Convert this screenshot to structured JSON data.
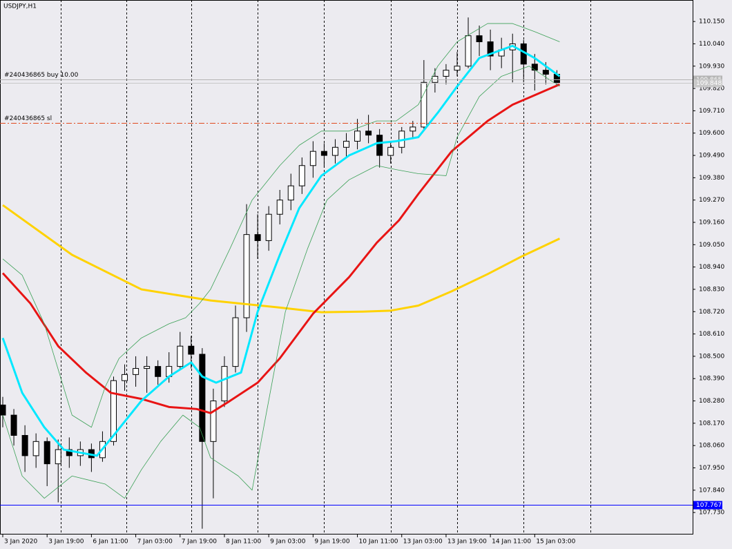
{
  "chart_data": {
    "type": "candlestick",
    "title": "USDJPY,H1",
    "xlim": [
      -1,
      249
    ],
    "ylim": [
      107.625,
      110.256
    ],
    "yticks": [
      {
        "value": 110.15,
        "label": "110.150"
      },
      {
        "value": 110.04,
        "label": "110.040"
      },
      {
        "value": 109.93,
        "label": "109.930"
      },
      {
        "value": 109.82,
        "label": "109.820"
      },
      {
        "value": 109.71,
        "label": "109.710"
      },
      {
        "value": 109.6,
        "label": "109.600"
      },
      {
        "value": 109.49,
        "label": "109.490"
      },
      {
        "value": 109.38,
        "label": "109.380"
      },
      {
        "value": 109.27,
        "label": "109.270"
      },
      {
        "value": 109.16,
        "label": "109.160"
      },
      {
        "value": 109.05,
        "label": "109.050"
      },
      {
        "value": 108.94,
        "label": "108.940"
      },
      {
        "value": 108.83,
        "label": "108.830"
      },
      {
        "value": 108.72,
        "label": "108.720"
      },
      {
        "value": 108.61,
        "label": "108.610"
      },
      {
        "value": 108.5,
        "label": "108.500"
      },
      {
        "value": 108.39,
        "label": "108.390"
      },
      {
        "value": 108.28,
        "label": "108.280"
      },
      {
        "value": 108.17,
        "label": "108.170"
      },
      {
        "value": 108.06,
        "label": "108.060"
      },
      {
        "value": 107.95,
        "label": "107.950"
      },
      {
        "value": 107.84,
        "label": "107.840"
      },
      {
        "value": 107.73,
        "label": "107.730"
      }
    ],
    "xticks": [
      {
        "value": 0,
        "label": "3 Jan 2020"
      },
      {
        "value": 16,
        "label": "3 Jan 19:00"
      },
      {
        "value": 32,
        "label": "6 Jan 11:00"
      },
      {
        "value": 48,
        "label": "7 Jan 03:00"
      },
      {
        "value": 64,
        "label": "7 Jan 19:00"
      },
      {
        "value": 80,
        "label": "8 Jan 11:00"
      },
      {
        "value": 96,
        "label": "9 Jan 03:00"
      },
      {
        "value": 112,
        "label": "9 Jan 19:00"
      },
      {
        "value": 128,
        "label": "10 Jan 11:00"
      },
      {
        "value": 144,
        "label": "13 Jan 03:00"
      },
      {
        "value": 160,
        "label": "13 Jan 19:00"
      },
      {
        "value": 176,
        "label": "14 Jan 11:00"
      },
      {
        "value": 192,
        "label": "15 Jan 03:00"
      }
    ],
    "period_separators": [
      21,
      44.5,
      68,
      92,
      116,
      140,
      164,
      188,
      212
    ],
    "x": [
      0,
      4,
      8,
      12,
      16,
      20,
      24,
      28,
      32,
      36,
      40,
      44,
      48,
      52,
      56,
      60,
      64,
      68,
      72,
      76,
      80,
      84,
      88,
      92,
      96,
      100,
      104,
      108,
      112,
      116,
      120,
      124,
      128,
      132,
      136,
      140,
      144,
      148,
      152,
      156,
      160,
      164,
      168,
      172,
      176,
      180,
      184,
      188,
      192,
      196,
      200
    ],
    "open": [
      108.26,
      108.21,
      108.11,
      108.01,
      108.08,
      107.97,
      108.04,
      108.01,
      108.04,
      108.0,
      108.08,
      108.38,
      108.41,
      108.44,
      108.45,
      108.4,
      108.45,
      108.55,
      108.51,
      108.08,
      108.28,
      108.45,
      108.69,
      109.1,
      109.07,
      109.2,
      109.27,
      109.34,
      109.44,
      109.51,
      109.49,
      109.53,
      109.56,
      109.61,
      109.59,
      109.49,
      109.53,
      109.61,
      109.63,
      109.85,
      109.88,
      109.91,
      109.93,
      110.08,
      110.05,
      109.98,
      110.01,
      110.04,
      109.94,
      109.91,
      109.89
    ],
    "high": [
      108.3,
      108.24,
      108.16,
      108.12,
      108.1,
      108.09,
      108.1,
      108.08,
      108.07,
      108.13,
      108.4,
      108.46,
      108.5,
      108.5,
      108.48,
      108.52,
      108.62,
      108.6,
      108.54,
      108.34,
      108.5,
      108.75,
      109.25,
      109.2,
      109.24,
      109.32,
      109.4,
      109.48,
      109.56,
      109.55,
      109.57,
      109.6,
      109.67,
      109.69,
      109.62,
      109.56,
      109.63,
      109.66,
      109.96,
      109.92,
      109.94,
      110.0,
      110.17,
      110.13,
      110.11,
      110.07,
      110.09,
      110.06,
      109.99,
      109.95,
      109.91
    ],
    "low": [
      108.15,
      108.06,
      107.93,
      107.95,
      107.86,
      107.78,
      107.95,
      107.96,
      107.93,
      107.98,
      108.06,
      108.33,
      108.35,
      108.32,
      108.36,
      108.37,
      108.43,
      108.44,
      107.65,
      107.8,
      108.25,
      108.42,
      108.62,
      108.98,
      109.02,
      109.15,
      109.22,
      109.3,
      109.38,
      109.43,
      109.45,
      109.48,
      109.52,
      109.55,
      109.43,
      109.45,
      109.5,
      109.58,
      109.62,
      109.8,
      109.84,
      109.88,
      109.92,
      109.98,
      109.91,
      109.92,
      109.85,
      109.85,
      109.81,
      109.84,
      109.83
    ],
    "close": [
      108.21,
      108.11,
      108.01,
      108.08,
      107.97,
      108.04,
      108.01,
      108.04,
      108.0,
      108.08,
      108.38,
      108.41,
      108.44,
      108.45,
      108.4,
      108.45,
      108.55,
      108.51,
      108.08,
      108.28,
      108.45,
      108.69,
      109.1,
      109.07,
      109.2,
      109.27,
      109.34,
      109.44,
      109.51,
      109.49,
      109.53,
      109.56,
      109.61,
      109.59,
      109.49,
      109.53,
      109.61,
      109.63,
      109.85,
      109.88,
      109.91,
      109.93,
      110.08,
      110.05,
      109.98,
      110.01,
      110.04,
      109.94,
      109.91,
      109.89,
      109.848
    ],
    "indicators": [
      {
        "color": "#ffd200",
        "width": 3,
        "x": [
          0,
          25,
          50,
          75,
          100,
          115,
          130,
          140,
          150,
          162,
          175,
          187,
          201
        ],
        "values": [
          109.245,
          109.0,
          108.83,
          108.775,
          108.74,
          108.717,
          108.72,
          108.725,
          108.75,
          108.82,
          108.905,
          108.99,
          109.08
        ]
      },
      {
        "color": "#e81414",
        "width": 3,
        "x": [
          0,
          10,
          20,
          30,
          39,
          50,
          60,
          70,
          75,
          82,
          92,
          100,
          112,
          125,
          135,
          143,
          150,
          162,
          175,
          184,
          201
        ],
        "values": [
          108.91,
          108.76,
          108.55,
          108.42,
          108.32,
          108.29,
          108.25,
          108.24,
          108.22,
          108.28,
          108.37,
          108.49,
          108.71,
          108.89,
          109.06,
          109.17,
          109.3,
          109.51,
          109.66,
          109.74,
          109.84
        ]
      },
      {
        "color": "#00e8ff",
        "width": 3,
        "x": [
          0,
          7,
          15,
          22,
          34,
          40,
          50,
          60,
          68,
          72,
          77,
          86,
          92,
          100,
          107,
          115,
          125,
          135,
          142,
          150,
          157,
          164,
          172,
          184,
          192,
          201
        ],
        "values": [
          108.59,
          108.32,
          108.15,
          108.04,
          108.01,
          108.11,
          108.28,
          108.4,
          108.47,
          108.4,
          108.37,
          108.42,
          108.72,
          109.0,
          109.23,
          109.39,
          109.49,
          109.55,
          109.56,
          109.58,
          109.7,
          109.83,
          109.97,
          110.03,
          109.97,
          109.88
        ]
      },
      {
        "color": "#3aa055",
        "width": 0.8,
        "x": [
          0,
          7,
          15,
          25,
          32,
          37,
          42,
          50,
          60,
          66,
          71,
          75,
          82,
          90,
          100,
          107,
          115,
          125,
          135,
          142,
          150,
          157,
          164,
          175,
          184,
          192,
          201
        ],
        "values": [
          108.98,
          108.9,
          108.66,
          108.21,
          108.15,
          108.35,
          108.49,
          108.59,
          108.66,
          108.69,
          108.76,
          108.83,
          109.03,
          109.27,
          109.44,
          109.54,
          109.61,
          109.61,
          109.66,
          109.66,
          109.74,
          109.93,
          110.05,
          110.14,
          110.14,
          110.1,
          110.05
        ]
      },
      {
        "color": "#3aa055",
        "width": 0.8,
        "x": [
          0,
          7,
          15,
          25,
          37,
          44,
          50,
          57,
          65,
          71,
          75,
          85,
          90,
          95,
          102,
          110,
          117,
          125,
          135,
          142,
          150,
          160,
          164,
          172,
          180,
          190,
          201
        ],
        "values": [
          108.21,
          107.91,
          107.8,
          107.91,
          107.87,
          107.8,
          107.94,
          108.08,
          108.21,
          108.15,
          108.0,
          107.91,
          107.84,
          108.21,
          108.72,
          109.03,
          109.27,
          109.37,
          109.44,
          109.42,
          109.4,
          109.39,
          109.58,
          109.78,
          109.88,
          109.93,
          109.83
        ]
      }
    ],
    "horizontal_lines": [
      {
        "text": "#240436865 buy 10.00",
        "value": 109.865,
        "label": "109.865",
        "color": "#b4b4b4",
        "dash": ""
      },
      {
        "text": "#240436865 sl",
        "value": 109.65,
        "color": "#e0481c",
        "dash": "8 3 2 3"
      },
      {
        "value": 109.848,
        "label": "109.848",
        "color": "#c8c8c8",
        "dash": ""
      },
      {
        "value": 107.767,
        "label": "107.767",
        "color": "#0000ff",
        "dash": ""
      }
    ]
  }
}
